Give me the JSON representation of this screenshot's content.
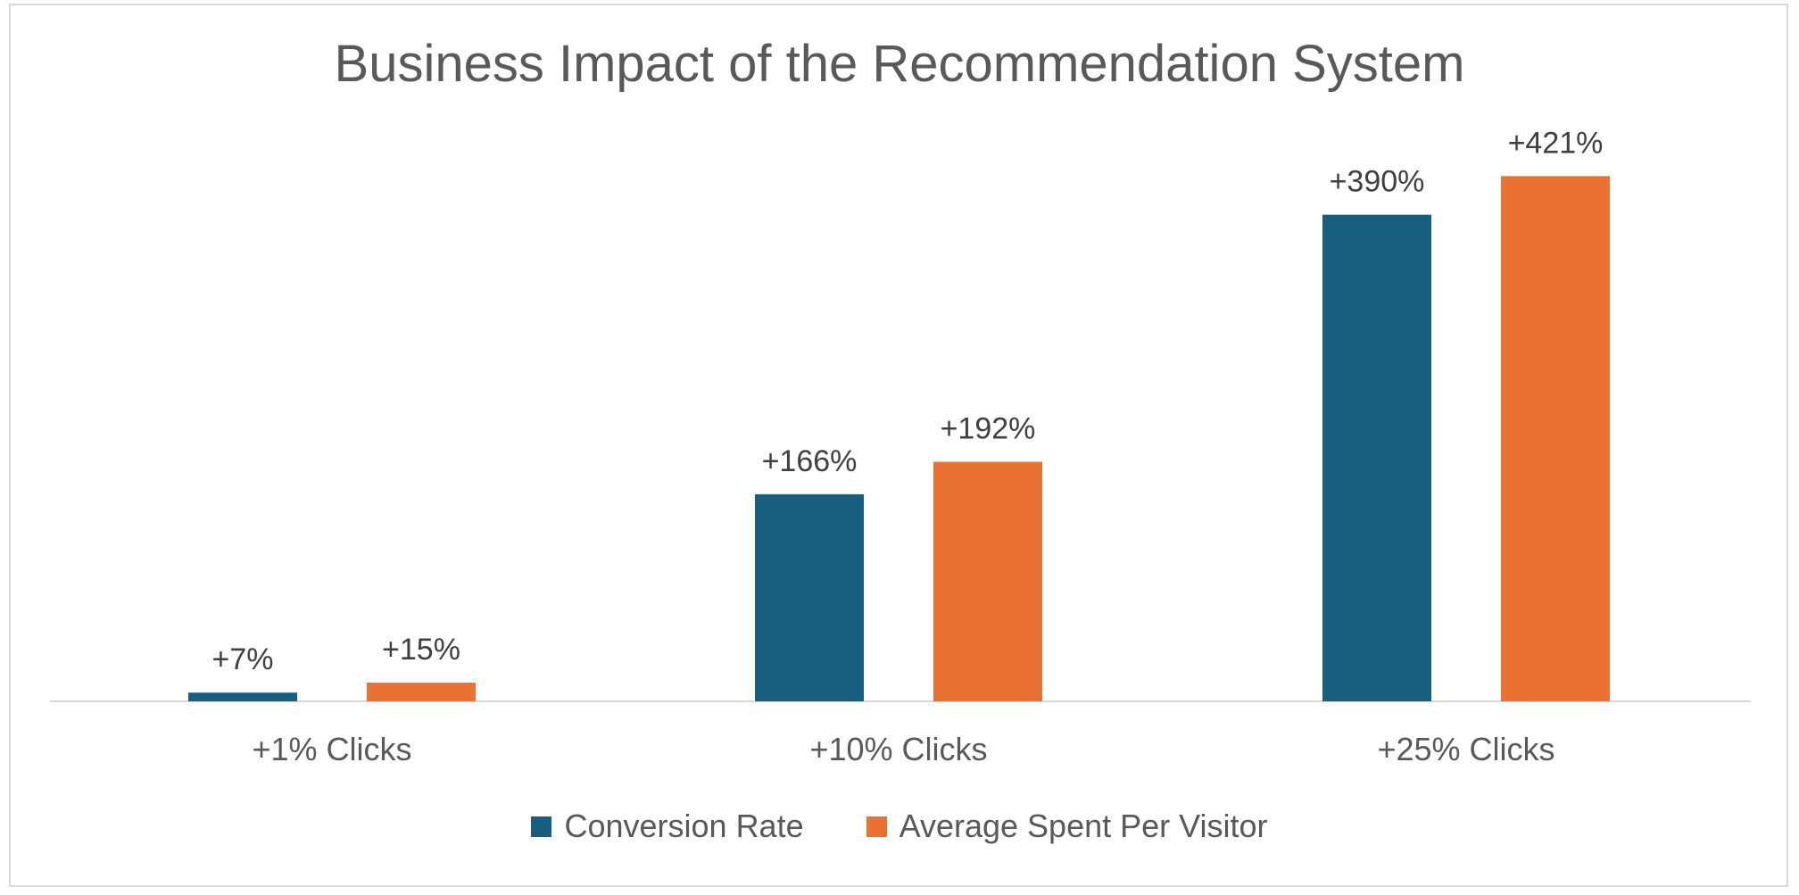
{
  "chart_data": {
    "type": "bar",
    "title": "Business Impact of the Recommendation System",
    "categories": [
      "+1% Clicks",
      "+10% Clicks",
      "+25% Clicks"
    ],
    "series": [
      {
        "name": "Conversion Rate",
        "values": [
          7,
          166,
          390
        ],
        "labels": [
          "+7%",
          "+166%",
          "+390%"
        ],
        "color": "#175e7f"
      },
      {
        "name": "Average Spent Per Visitor",
        "values": [
          15,
          192,
          421
        ],
        "labels": [
          "+15%",
          "+192%",
          "+421%"
        ],
        "color": "#e97132"
      }
    ],
    "xlabel": "",
    "ylabel": "",
    "grid": false,
    "legend_position": "bottom"
  }
}
